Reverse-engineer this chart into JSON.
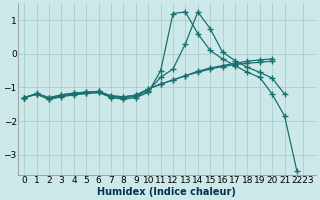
{
  "xlabel": "Humidex (Indice chaleur)",
  "xlim": [
    -0.5,
    23.5
  ],
  "ylim": [
    -3.6,
    1.5
  ],
  "yticks": [
    -3,
    -2,
    -1,
    0,
    1
  ],
  "xtick_labels": [
    "0",
    "1",
    "2",
    "3",
    "4",
    "5",
    "6",
    "7",
    "8",
    "9",
    "10",
    "11",
    "12",
    "13",
    "14",
    "15",
    "16",
    "17",
    "18",
    "19",
    "20",
    "21",
    "2223"
  ],
  "xtick_positions": [
    0,
    1,
    2,
    3,
    4,
    5,
    6,
    7,
    8,
    9,
    10,
    11,
    12,
    13,
    14,
    15,
    16,
    17,
    18,
    19,
    20,
    21,
    22.5
  ],
  "bg_color": "#cce8e8",
  "grid_color": "#aacece",
  "line_color": "#1a7070",
  "marker": "+",
  "markersize": 4,
  "markeredgewidth": 1.0,
  "linewidth": 0.9,
  "s1_x": [
    0,
    1,
    2,
    3,
    4,
    5,
    6,
    7,
    8,
    9,
    10,
    11,
    12,
    13,
    14,
    15,
    16,
    17,
    18,
    19,
    20,
    21,
    22
  ],
  "s1_y": [
    -1.3,
    -1.2,
    -1.35,
    -1.25,
    -1.2,
    -1.18,
    -1.15,
    -1.3,
    -1.35,
    -1.3,
    -1.15,
    -0.5,
    1.2,
    1.25,
    0.6,
    0.1,
    -0.15,
    -0.35,
    -0.55,
    -0.7,
    -1.2,
    -1.85,
    -3.5
  ],
  "s2_x": [
    0,
    1,
    2,
    3,
    4,
    5,
    6,
    7,
    8,
    9,
    10,
    11,
    12,
    13,
    14,
    15,
    16,
    17,
    18,
    19,
    20,
    21
  ],
  "s2_y": [
    -1.3,
    -1.2,
    -1.35,
    -1.28,
    -1.22,
    -1.18,
    -1.15,
    -1.28,
    -1.3,
    -1.27,
    -1.1,
    -0.7,
    -0.45,
    0.3,
    1.25,
    0.75,
    0.05,
    -0.2,
    -0.4,
    -0.55,
    -0.72,
    -1.2
  ],
  "s3_x": [
    0,
    1,
    2,
    3,
    4,
    5,
    6,
    7,
    8,
    9,
    10,
    11,
    12,
    13,
    14,
    15,
    16,
    17,
    18,
    19,
    20
  ],
  "s3_y": [
    -1.3,
    -1.2,
    -1.32,
    -1.22,
    -1.17,
    -1.14,
    -1.12,
    -1.25,
    -1.28,
    -1.23,
    -1.05,
    -0.9,
    -0.78,
    -0.65,
    -0.55,
    -0.45,
    -0.38,
    -0.32,
    -0.28,
    -0.25,
    -0.22
  ],
  "s4_x": [
    0,
    1,
    2,
    3,
    4,
    5,
    6,
    7,
    8,
    9,
    10,
    11,
    12,
    13,
    14,
    15,
    16,
    17,
    18,
    19,
    20
  ],
  "s4_y": [
    -1.3,
    -1.18,
    -1.3,
    -1.22,
    -1.17,
    -1.14,
    -1.12,
    -1.25,
    -1.28,
    -1.23,
    -1.05,
    -0.9,
    -0.78,
    -0.65,
    -0.52,
    -0.42,
    -0.35,
    -0.28,
    -0.22,
    -0.18,
    -0.15
  ]
}
